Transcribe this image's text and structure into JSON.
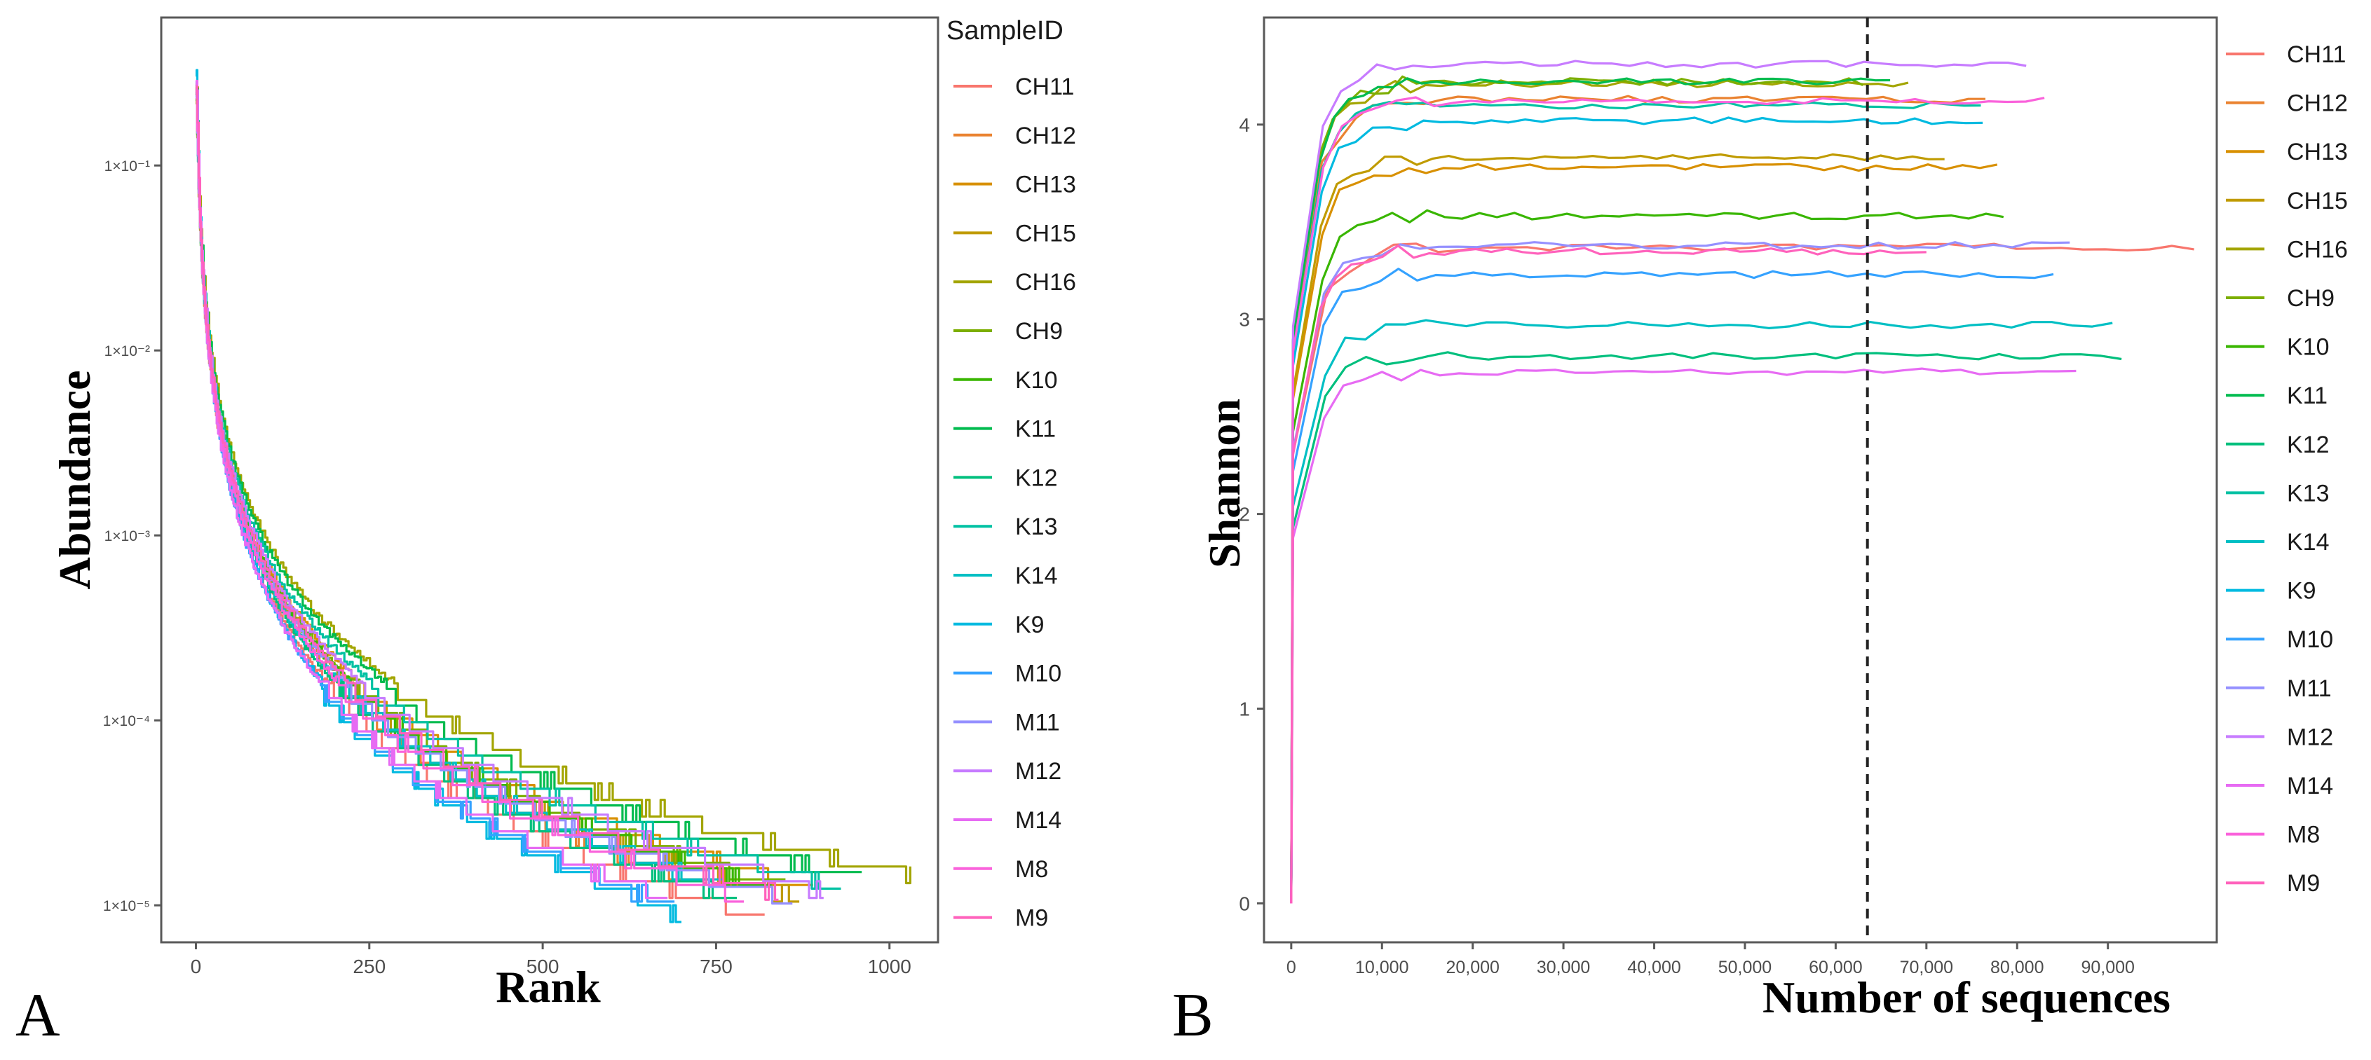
{
  "panels": {
    "left_letter": "A",
    "right_letter": "B"
  },
  "colors": {
    "CH11": "#F8766D",
    "CH12": "#EA8331",
    "CH13": "#D89000",
    "CH15": "#C09B00",
    "CH16": "#A3A500",
    "CH9": "#7CAE00",
    "K10": "#39B600",
    "K11": "#00BB4E",
    "K12": "#00BF7D",
    "K13": "#00C1A3",
    "K14": "#00BFC4",
    "K9": "#00BAE0",
    "M10": "#35A2FF",
    "M11": "#9590FF",
    "M12": "#C77CFF",
    "M14": "#E76BF3",
    "M8": "#FA62DB",
    "M9": "#FF62BC"
  },
  "chart_data": [
    {
      "type": "line",
      "title": "",
      "xlabel": "Rank",
      "ylabel": "Abundance",
      "yscale": "log10",
      "xlim": [
        -50,
        1070
      ],
      "ylim_log10": [
        -5.2,
        -0.2
      ],
      "xticks": [
        0,
        250,
        500,
        750,
        1000
      ],
      "xtick_labels": [
        "0",
        "250",
        "500",
        "750",
        "1000"
      ],
      "yticks_log10": [
        -5,
        -4,
        -3,
        -2,
        -1
      ],
      "ytick_labels": [
        "1×10⁻⁵",
        "1×10⁻⁴",
        "1×10⁻³",
        "1×10⁻²",
        "1×10⁻¹"
      ],
      "legend_title": "SampleID",
      "legend_position": "right",
      "series": [
        {
          "name": "CH11",
          "max_rank": 820,
          "top": -0.6,
          "end": -5.06
        },
        {
          "name": "CH12",
          "max_rank": 745,
          "top": -0.55,
          "end": -4.9
        },
        {
          "name": "CH13",
          "max_rank": 890,
          "top": -0.62,
          "end": -4.88
        },
        {
          "name": "CH15",
          "max_rank": 870,
          "top": -0.65,
          "end": -4.93
        },
        {
          "name": "CH16",
          "max_rank": 1030,
          "top": -0.58,
          "end": -4.82
        },
        {
          "name": "CH9",
          "max_rank": 850,
          "top": -0.6,
          "end": -4.9
        },
        {
          "name": "K10",
          "max_rank": 830,
          "top": -0.63,
          "end": -4.88
        },
        {
          "name": "K11",
          "max_rank": 960,
          "top": -0.6,
          "end": -4.8
        },
        {
          "name": "K12",
          "max_rank": 780,
          "top": -0.57,
          "end": -4.96
        },
        {
          "name": "K13",
          "max_rank": 930,
          "top": -0.61,
          "end": -4.85
        },
        {
          "name": "K14",
          "max_rank": 760,
          "top": -0.59,
          "end": -4.9
        },
        {
          "name": "K9",
          "max_rank": 700,
          "top": -0.5,
          "end": -5.0
        },
        {
          "name": "M10",
          "max_rank": 690,
          "top": -0.55,
          "end": -4.98
        },
        {
          "name": "M11",
          "max_rank": 860,
          "top": -0.62,
          "end": -4.94
        },
        {
          "name": "M12",
          "max_rank": 905,
          "top": -0.58,
          "end": -4.91
        },
        {
          "name": "M14",
          "max_rank": 680,
          "top": -0.56,
          "end": -4.96
        },
        {
          "name": "M8",
          "max_rank": 790,
          "top": -0.6,
          "end": -4.93
        },
        {
          "name": "M9",
          "max_rank": 840,
          "top": -0.57,
          "end": -4.92
        }
      ]
    },
    {
      "type": "line",
      "title": "",
      "xlabel": "Number of sequences",
      "ylabel": "Shannon",
      "xlim": [
        -3000,
        102000
      ],
      "ylim": [
        -0.2,
        4.55
      ],
      "xticks": [
        0,
        10000,
        20000,
        30000,
        40000,
        50000,
        60000,
        70000,
        80000,
        90000
      ],
      "xtick_labels": [
        "0",
        "10,000",
        "20,000",
        "30,000",
        "40,000",
        "50,000",
        "60,000",
        "70,000",
        "80,000",
        "90,000"
      ],
      "yticks": [
        0,
        1,
        2,
        3,
        4
      ],
      "ytick_labels": [
        "0",
        "1",
        "2",
        "3",
        "4"
      ],
      "reference_line_x": 63500,
      "legend_position": "right",
      "series": [
        {
          "name": "CH11",
          "max_x": 99500,
          "plateau": 3.37
        },
        {
          "name": "CH12",
          "max_x": 76500,
          "plateau": 4.13
        },
        {
          "name": "CH13",
          "max_x": 77800,
          "plateau": 3.78
        },
        {
          "name": "CH15",
          "max_x": 72000,
          "plateau": 3.83
        },
        {
          "name": "CH16",
          "max_x": 68000,
          "plateau": 4.21
        },
        {
          "name": "CH9",
          "max_x": 63000,
          "plateau": 4.22
        },
        {
          "name": "K10",
          "max_x": 78500,
          "plateau": 3.53
        },
        {
          "name": "K11",
          "max_x": 66000,
          "plateau": 4.22
        },
        {
          "name": "K12",
          "max_x": 91500,
          "plateau": 2.81
        },
        {
          "name": "K13",
          "max_x": 76000,
          "plateau": 4.1
        },
        {
          "name": "K14",
          "max_x": 90500,
          "plateau": 2.97
        },
        {
          "name": "K9",
          "max_x": 76200,
          "plateau": 4.02
        },
        {
          "name": "M10",
          "max_x": 84000,
          "plateau": 3.23
        },
        {
          "name": "M11",
          "max_x": 85800,
          "plateau": 3.38
        },
        {
          "name": "M12",
          "max_x": 81000,
          "plateau": 4.31
        },
        {
          "name": "M14",
          "max_x": 86500,
          "plateau": 2.73
        },
        {
          "name": "M8",
          "max_x": 83000,
          "plateau": 4.12
        },
        {
          "name": "M9",
          "max_x": 70000,
          "plateau": 3.35
        }
      ]
    }
  ]
}
